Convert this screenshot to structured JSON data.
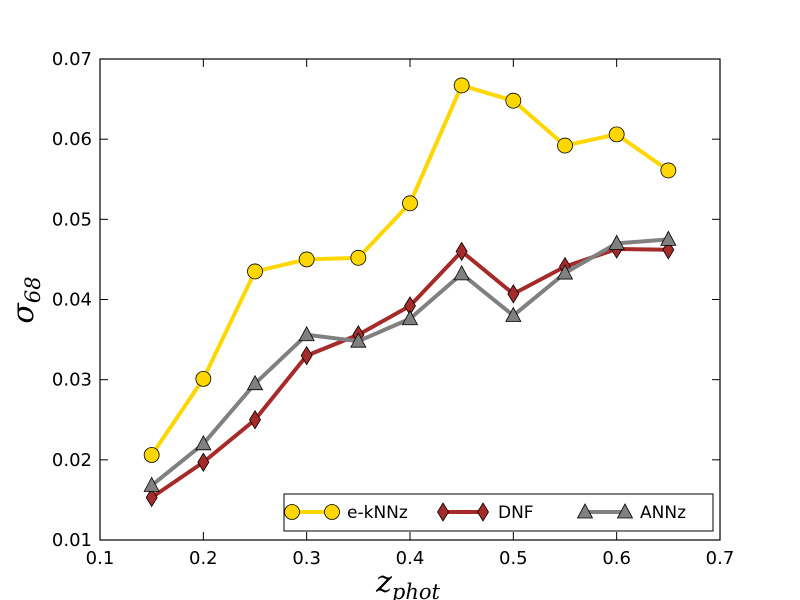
{
  "chart_data": {
    "type": "line",
    "title": "",
    "xlabel": "z",
    "xlabel_sub": "phot",
    "ylabel": "σ",
    "ylabel_sub": "68",
    "xlim": [
      0.1,
      0.7
    ],
    "ylim": [
      0.01,
      0.07
    ],
    "xticks": [
      0.1,
      0.2,
      0.3,
      0.4,
      0.5,
      0.6,
      0.7
    ],
    "yticks": [
      0.01,
      0.02,
      0.03,
      0.04,
      0.05,
      0.06,
      0.07
    ],
    "xtick_labels": [
      "0.1",
      "0.2",
      "0.3",
      "0.4",
      "0.5",
      "0.6",
      "0.7"
    ],
    "ytick_labels": [
      "0.01",
      "0.02",
      "0.03",
      "0.04",
      "0.05",
      "0.06",
      "0.07"
    ],
    "grid": false,
    "legend_position": "bottom-right",
    "x": [
      0.15,
      0.2,
      0.25,
      0.3,
      0.35,
      0.4,
      0.45,
      0.5,
      0.55,
      0.6,
      0.65
    ],
    "series": [
      {
        "name": "e-kNNz",
        "color": "#ffd700",
        "marker": "circle",
        "values": [
          0.0206,
          0.0301,
          0.0435,
          0.045,
          0.0452,
          0.052,
          0.0667,
          0.0648,
          0.0592,
          0.0606,
          0.0561
        ]
      },
      {
        "name": "DNF",
        "color": "#a52a2a",
        "marker": "thin-diamond",
        "values": [
          0.0153,
          0.0197,
          0.025,
          0.033,
          0.0356,
          0.0392,
          0.046,
          0.0407,
          0.0441,
          0.0463,
          0.0462
        ]
      },
      {
        "name": "ANNz",
        "color": "#808080",
        "marker": "triangle",
        "values": [
          0.0168,
          0.022,
          0.0295,
          0.0356,
          0.0348,
          0.0376,
          0.0432,
          0.038,
          0.0433,
          0.047,
          0.0475
        ]
      }
    ]
  }
}
